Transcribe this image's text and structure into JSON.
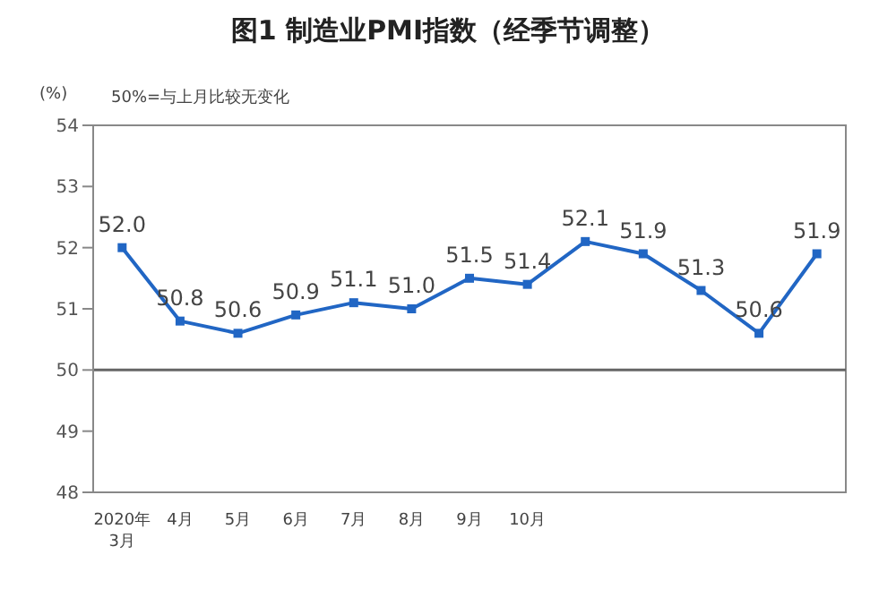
{
  "chart_data": {
    "type": "line",
    "title": "图1  制造业PMI指数（经季节调整）",
    "ylabel": "(%)",
    "annotations": [
      "50%=与上月比较无变化"
    ],
    "categories": [
      "2020年\n3月",
      "4月",
      "5月",
      "6月",
      "7月",
      "8月",
      "9月",
      "10月",
      null,
      null,
      null,
      null,
      null
    ],
    "series": [
      {
        "color": "#2166c4",
        "values": [
          52.0,
          50.8,
          50.6,
          50.9,
          51.1,
          51.0,
          51.5,
          51.4,
          52.1,
          51.9,
          51.3,
          50.6,
          51.9
        ],
        "value_labels": [
          "52.0",
          "50.8",
          "50.6",
          "50.9",
          "51.1",
          "51.0",
          "51.5",
          "51.4",
          "52.1",
          "51.9",
          "51.3",
          "50.6",
          "51.9"
        ]
      }
    ],
    "ylim": [
      48,
      54
    ],
    "yticks": [
      48,
      49,
      50,
      51,
      52,
      53,
      54
    ],
    "ref_lines": [
      {
        "axis": "y",
        "value": 50,
        "color": "#666666"
      }
    ],
    "marker": "square",
    "grid": false,
    "legend": false
  }
}
